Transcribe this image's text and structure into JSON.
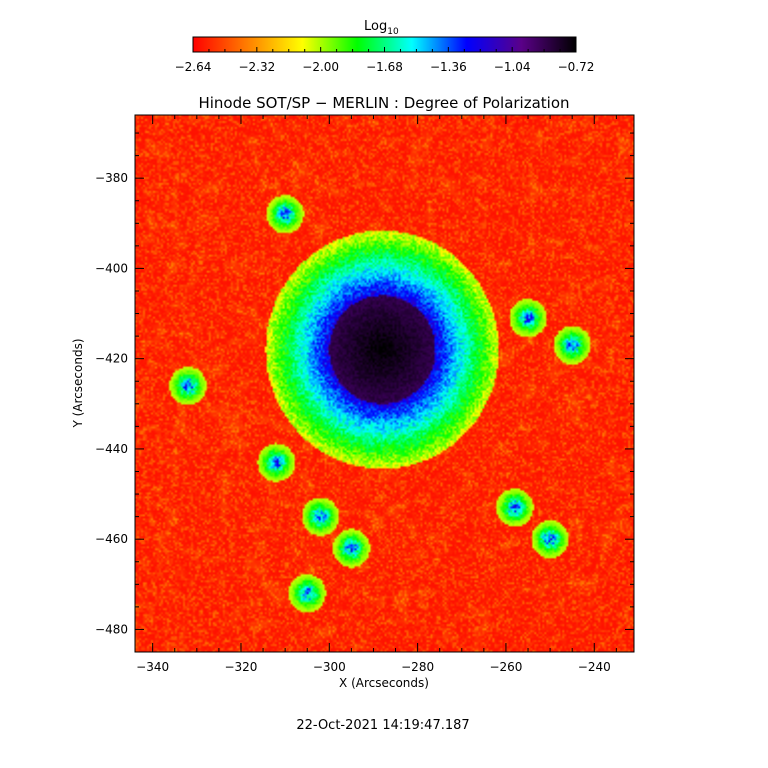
{
  "chart_data": {
    "type": "heatmap",
    "title": "Hinode SOT/SP − MERLIN : Degree of Polarization",
    "xlabel": "X (Arcseconds)",
    "ylabel": "Y (Arcseconds)",
    "xlim": [
      -344,
      -231
    ],
    "ylim": [
      -485,
      -366
    ],
    "xticks": [
      -340,
      -320,
      -300,
      -280,
      -260,
      -240
    ],
    "xtick_labels": [
      "−340",
      "−320",
      "−300",
      "−280",
      "−260",
      "−240"
    ],
    "yticks": [
      -380,
      -400,
      -420,
      -440,
      -460,
      -480
    ],
    "ytick_labels": [
      "−380",
      "−400",
      "−420",
      "−440",
      "−460",
      "−480"
    ],
    "colorbar": {
      "label": "Log",
      "label_subscript": "10",
      "range": [
        -2.64,
        -0.72
      ],
      "ticks": [
        -2.64,
        -2.32,
        -2.0,
        -1.68,
        -1.36,
        -1.04,
        -0.72
      ],
      "tick_labels": [
        "−2.64",
        "−2.32",
        "−2.00",
        "−1.68",
        "−1.36",
        "−1.04",
        "−0.72"
      ],
      "colors": [
        "#ff0000",
        "#ff7f00",
        "#ffff00",
        "#00ff00",
        "#00ffff",
        "#0000ff",
        "#5a0088",
        "#000000"
      ]
    },
    "features": [
      {
        "name": "sunspot umbra",
        "x": -288,
        "y": -418,
        "rx": 12,
        "ry": 12,
        "peak": -0.72
      },
      {
        "name": "network",
        "points": [
          [
            -332,
            -426
          ],
          [
            -312,
            -443
          ],
          [
            -302,
            -455
          ],
          [
            -295,
            -462
          ],
          [
            -258,
            -453
          ],
          [
            -250,
            -460
          ],
          [
            -245,
            -417
          ],
          [
            -255,
            -411
          ],
          [
            -305,
            -472
          ],
          [
            -310,
            -388
          ]
        ]
      }
    ],
    "background_level": -2.64,
    "grid": false
  },
  "footer": {
    "timestamp": "22-Oct-2021 14:19:47.187"
  }
}
